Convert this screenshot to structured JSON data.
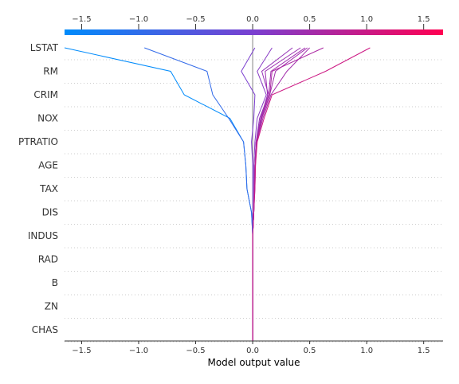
{
  "chart_data": {
    "type": "line",
    "title": "",
    "xlabel": "Model output value",
    "ylabel": "",
    "xlim": [
      -1.65,
      1.67
    ],
    "base_value": 0.0,
    "x_ticks": [
      -1.5,
      -1.0,
      -0.5,
      0.0,
      0.5,
      1.0,
      1.5
    ],
    "x_tick_labels": [
      "−1.5",
      "−1.0",
      "−0.5",
      "0.0",
      "0.5",
      "1.0",
      "1.5"
    ],
    "features": [
      "LSTAT",
      "RM",
      "CRIM",
      "NOX",
      "PTRATIO",
      "AGE",
      "TAX",
      "DIS",
      "INDUS",
      "RAD",
      "B",
      "ZN",
      "CHAS"
    ],
    "grid": "dotted horizontal",
    "colormap": {
      "low": "#008bfb",
      "mid": "#7a3fd0",
      "high": "#ff0052"
    },
    "series": [
      {
        "values": [
          -1.65,
          -0.72,
          -0.6,
          -0.2,
          -0.08,
          -0.06,
          -0.05,
          -0.01,
          0.0,
          0.0,
          0.0,
          0.0,
          0.0
        ]
      },
      {
        "values": [
          -0.95,
          -0.4,
          -0.35,
          -0.21,
          -0.08,
          -0.06,
          -0.05,
          -0.01,
          0.0,
          0.0,
          0.0,
          0.0,
          0.0
        ]
      },
      {
        "values": [
          0.02,
          -0.1,
          0.02,
          0.01,
          -0.01,
          0.0,
          0.0,
          0.0,
          0.0,
          0.0,
          0.0,
          0.0,
          0.0
        ]
      },
      {
        "values": [
          0.17,
          0.04,
          0.12,
          0.04,
          0.02,
          0.01,
          0.01,
          0.01,
          0.0,
          0.0,
          0.0,
          0.0,
          0.0
        ]
      },
      {
        "values": [
          0.35,
          0.08,
          0.14,
          0.06,
          0.03,
          0.02,
          0.015,
          0.01,
          0.0,
          0.0,
          0.0,
          0.0,
          0.0
        ]
      },
      {
        "values": [
          0.42,
          0.11,
          0.13,
          0.07,
          0.03,
          0.02,
          0.015,
          0.01,
          0.0,
          0.0,
          0.0,
          0.0,
          0.0
        ]
      },
      {
        "values": [
          0.46,
          0.16,
          0.14,
          0.075,
          0.03,
          0.02,
          0.015,
          0.01,
          0.0,
          0.0,
          0.0,
          0.0,
          0.0
        ]
      },
      {
        "values": [
          0.48,
          0.2,
          0.15,
          0.08,
          0.035,
          0.02,
          0.015,
          0.01,
          0.0,
          0.0,
          0.0,
          0.0,
          0.0
        ]
      },
      {
        "values": [
          0.5,
          0.3,
          0.16,
          0.09,
          0.035,
          0.025,
          0.02,
          0.01,
          0.0,
          0.0,
          0.0,
          0.0,
          0.0
        ]
      },
      {
        "values": [
          0.62,
          0.17,
          0.15,
          0.08,
          0.035,
          0.02,
          0.015,
          0.01,
          0.0,
          0.0,
          0.0,
          0.0,
          0.0
        ]
      },
      {
        "values": [
          1.03,
          0.64,
          0.17,
          0.1,
          0.04,
          0.025,
          0.02,
          0.01,
          0.0,
          0.0,
          0.0,
          0.0,
          0.0
        ]
      }
    ]
  }
}
